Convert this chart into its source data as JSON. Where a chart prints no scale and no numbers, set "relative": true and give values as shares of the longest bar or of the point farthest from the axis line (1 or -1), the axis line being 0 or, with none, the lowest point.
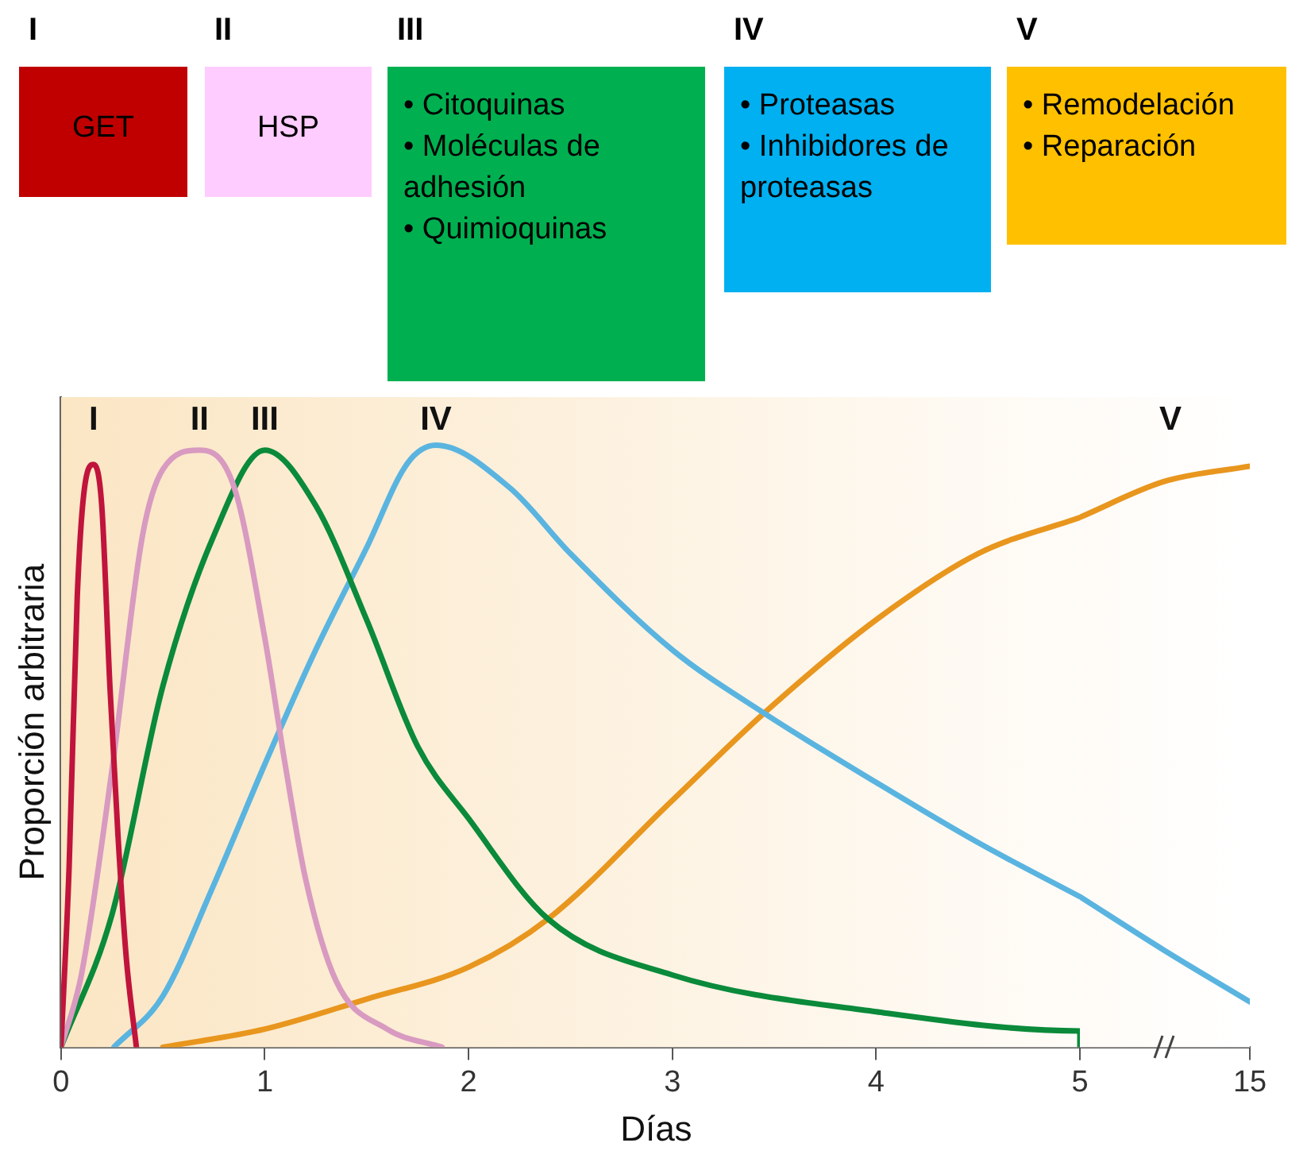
{
  "chart_data": [
    {
      "type": "other",
      "categories": [
        "I",
        "II",
        "III",
        "IV",
        "V"
      ],
      "colors": [
        "#c00000",
        "#ffccff",
        "#00b050",
        "#00b0f0",
        "#ffc000"
      ],
      "annotations": [
        "GET",
        "HSP",
        "• Citoquinas\n• Moléculas de adhesión\n• Quimioquinas",
        "• Proteasas\n• Inhibidores de proteasas",
        "• Remodelación\n• Reparación"
      ]
    },
    {
      "type": "line",
      "xlabel": "Días",
      "ylabel": "Proporción arbitraria",
      "relative": true,
      "legend": false,
      "grid": false,
      "tick_labels": "x",
      "marker": "none",
      "xlim": [
        0,
        5
      ],
      "xticks": [
        0,
        1,
        2,
        3,
        4,
        {
          "value": 5,
          "label": null
        }
      ],
      "series": [
        {
          "name": "I",
          "color": "#c0143c",
          "x": [
            0,
            0.04,
            0.08,
            0.12,
            0.16,
            0.2,
            0.24,
            0.28,
            0.32,
            0.37
          ],
          "values": [
            0,
            0.3,
            0.75,
            0.94,
            0.968,
            0.9,
            0.6,
            0.35,
            0.15,
            0
          ]
        },
        {
          "name": "II",
          "color": "#d89ac0",
          "x": [
            0,
            0.1,
            0.25,
            0.4,
            0.5,
            0.68,
            0.85,
            1.0,
            1.1,
            1.2,
            1.35,
            1.6,
            1.87
          ],
          "values": [
            0,
            0.12,
            0.46,
            0.85,
            0.96,
            0.992,
            0.93,
            0.68,
            0.47,
            0.28,
            0.11,
            0.03,
            0
          ]
        },
        {
          "name": "III",
          "color": "#0a8a3a",
          "x": [
            0,
            0.25,
            0.5,
            0.75,
            1.0,
            1.25,
            1.5,
            1.75,
            2.0,
            2.39,
            3,
            4,
            5,
            5
          ],
          "values": [
            0,
            0.22,
            0.6,
            0.85,
            0.992,
            0.9,
            0.71,
            0.5,
            0.38,
            0.213,
            0.12,
            0.059,
            0.027,
            0
          ]
        },
        {
          "name": "IV",
          "color": "#5ab4e0",
          "x": [
            0.26,
            0.5,
            0.75,
            1.0,
            1.25,
            1.5,
            1.7,
            1.84,
            2.2,
            2.5,
            3,
            3.45,
            4,
            4.5,
            5
          ],
          "values": [
            0,
            0.085,
            0.27,
            0.47,
            0.66,
            0.83,
            0.97,
            1,
            0.93,
            0.82,
            0.66,
            0.555,
            0.44,
            0.34,
            0.25
          ]
        },
        {
          "color": "#e8961e",
          "x": [
            0.5,
            1,
            1.5,
            2,
            2.39,
            3,
            3.45,
            4,
            4.5,
            5
          ],
          "values": [
            0,
            0.03,
            0.08,
            0.133,
            0.213,
            0.41,
            0.555,
            0.71,
            0.82,
            0.88
          ]
        }
      ]
    },
    {
      "type": "line",
      "relative": true,
      "legend": false,
      "grid": false,
      "tick_labels": "x",
      "marker": "none",
      "xlim": [
        5,
        15
      ],
      "xticks": [
        5,
        15
      ],
      "series": [
        {
          "color": "#5ab4e0",
          "x": [
            5,
            10,
            15
          ],
          "values": [
            0.259,
            0.166,
            0.078
          ]
        },
        {
          "name": "V",
          "color": "#e8961e",
          "x": [
            5,
            10,
            15
          ],
          "values": [
            0.912,
            0.974,
            1
          ]
        }
      ]
    }
  ]
}
